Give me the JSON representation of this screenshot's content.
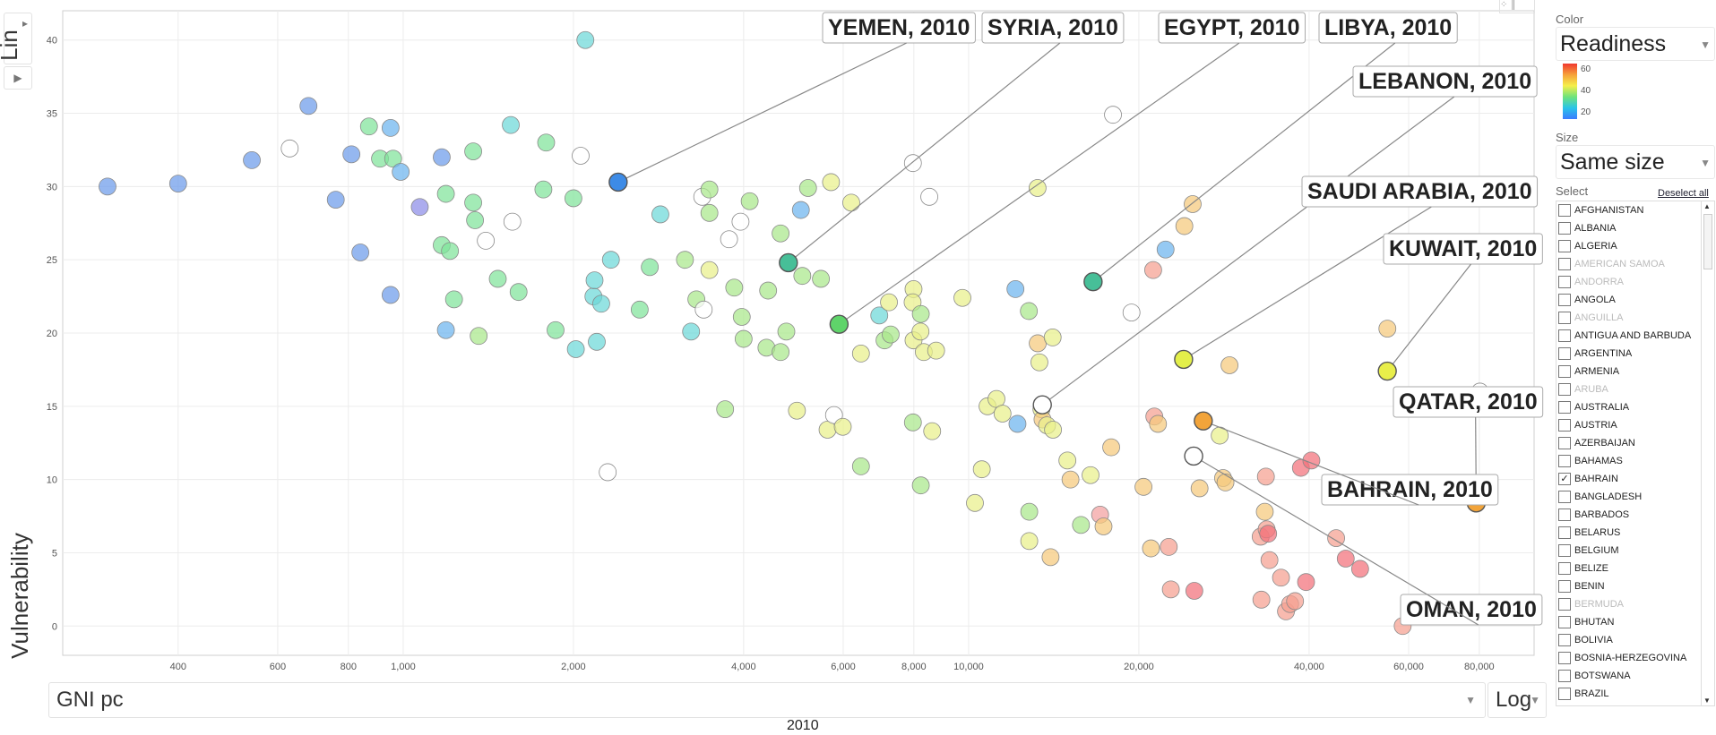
{
  "y_axis": {
    "scale_label": "Lin",
    "title": "Vulnerability",
    "play_icon": "play-icon"
  },
  "x_axis": {
    "title": "GNI pc",
    "scale_label": "Log"
  },
  "time_label": "2010",
  "panel": {
    "color_label": "Color",
    "color_value": "Readiness",
    "legend_ticks": [
      "60",
      "40",
      "20"
    ],
    "size_label": "Size",
    "size_value": "Same size",
    "select_label": "Select",
    "deselect_all": "Deselect all",
    "countries": [
      {
        "name": "AFGHANISTAN",
        "checked": false,
        "dim": false
      },
      {
        "name": "ALBANIA",
        "checked": false,
        "dim": false
      },
      {
        "name": "ALGERIA",
        "checked": false,
        "dim": false
      },
      {
        "name": "AMERICAN SAMOA",
        "checked": false,
        "dim": true
      },
      {
        "name": "ANDORRA",
        "checked": false,
        "dim": true
      },
      {
        "name": "ANGOLA",
        "checked": false,
        "dim": false
      },
      {
        "name": "ANGUILLA",
        "checked": false,
        "dim": true
      },
      {
        "name": "ANTIGUA AND BARBUDA",
        "checked": false,
        "dim": false
      },
      {
        "name": "ARGENTINA",
        "checked": false,
        "dim": false
      },
      {
        "name": "ARMENIA",
        "checked": false,
        "dim": false
      },
      {
        "name": "ARUBA",
        "checked": false,
        "dim": true
      },
      {
        "name": "AUSTRALIA",
        "checked": false,
        "dim": false
      },
      {
        "name": "AUSTRIA",
        "checked": false,
        "dim": false
      },
      {
        "name": "AZERBAIJAN",
        "checked": false,
        "dim": false
      },
      {
        "name": "BAHAMAS",
        "checked": false,
        "dim": false
      },
      {
        "name": "BAHRAIN",
        "checked": true,
        "dim": false
      },
      {
        "name": "BANGLADESH",
        "checked": false,
        "dim": false
      },
      {
        "name": "BARBADOS",
        "checked": false,
        "dim": false
      },
      {
        "name": "BELARUS",
        "checked": false,
        "dim": false
      },
      {
        "name": "BELGIUM",
        "checked": false,
        "dim": false
      },
      {
        "name": "BELIZE",
        "checked": false,
        "dim": false
      },
      {
        "name": "BENIN",
        "checked": false,
        "dim": false
      },
      {
        "name": "BERMUDA",
        "checked": false,
        "dim": true
      },
      {
        "name": "BHUTAN",
        "checked": false,
        "dim": false
      },
      {
        "name": "BOLIVIA",
        "checked": false,
        "dim": false
      },
      {
        "name": "BOSNIA-HERZEGOVINA",
        "checked": false,
        "dim": false
      },
      {
        "name": "BOTSWANA",
        "checked": false,
        "dim": false
      },
      {
        "name": "BRAZIL",
        "checked": false,
        "dim": false
      }
    ]
  },
  "chart_data": {
    "type": "scatter",
    "xlabel": "GNI pc",
    "ylabel": "Vulnerability",
    "x_scale": "log",
    "xlim": [
      250,
      100000
    ],
    "ylim": [
      -2,
      42
    ],
    "x_ticks": [
      {
        "v": 400,
        "l": "400"
      },
      {
        "v": 600,
        "l": "600"
      },
      {
        "v": 800,
        "l": "800"
      },
      {
        "v": 1000,
        "l": "1,000"
      },
      {
        "v": 2000,
        "l": "2,000"
      },
      {
        "v": 4000,
        "l": "4,000"
      },
      {
        "v": 6000,
        "l": "6,000"
      },
      {
        "v": 8000,
        "l": "8,000"
      },
      {
        "v": 10000,
        "l": "10,000"
      },
      {
        "v": 20000,
        "l": "20,000"
      },
      {
        "v": 40000,
        "l": "40,000"
      },
      {
        "v": 60000,
        "l": "60,000"
      },
      {
        "v": 80000,
        "l": "80,000"
      }
    ],
    "y_ticks": [
      0,
      5,
      10,
      15,
      20,
      25,
      30,
      35,
      40
    ],
    "grid": true,
    "color_legend": {
      "label": "Readiness",
      "min": 20,
      "max": 60
    },
    "highlighted": [
      {
        "label": "YEMEN, 2010",
        "x": 2400,
        "y": 30.3,
        "color": "#3d8be6"
      },
      {
        "label": "SYRIA, 2010",
        "x": 4800,
        "y": 24.8,
        "color": "#47bf98"
      },
      {
        "label": "EGYPT, 2010",
        "x": 5900,
        "y": 20.6,
        "color": "#5fd46a"
      },
      {
        "label": "LIBYA, 2010",
        "x": 16600,
        "y": 23.5,
        "color": "#47bf98"
      },
      {
        "label": "LEBANON, 2010",
        "x": 13500,
        "y": 15.1,
        "color": "#ffffff"
      },
      {
        "label": "SAUDI ARABIA, 2010",
        "x": 24000,
        "y": 18.2,
        "color": "#e3ef4a"
      },
      {
        "label": "KUWAIT, 2010",
        "x": 55000,
        "y": 17.4,
        "color": "#e8ee4a"
      },
      {
        "label": "QATAR, 2010",
        "x": 79000,
        "y": 8.4,
        "color": "#f2a43a"
      },
      {
        "label": "BAHRAIN, 2010",
        "x": 26000,
        "y": 14.0,
        "color": "#f2a43a"
      },
      {
        "label": "OMAN, 2010",
        "x": 25000,
        "y": 11.6,
        "color": "#ffffff"
      }
    ],
    "points": [
      [
        300,
        30,
        "#6c9bea"
      ],
      [
        400,
        30.2,
        "#6c9bea"
      ],
      [
        540,
        31.8,
        "#6c9bea"
      ],
      [
        630,
        32.6,
        "#ffffff"
      ],
      [
        680,
        35.5,
        "#6c9bea"
      ],
      [
        760,
        29.1,
        "#6c9bea"
      ],
      [
        810,
        32.2,
        "#6c9bea"
      ],
      [
        840,
        25.5,
        "#6c9bea"
      ],
      [
        870,
        34.1,
        "#7fe39a"
      ],
      [
        910,
        31.9,
        "#7fe39a"
      ],
      [
        950,
        34.0,
        "#6cb4ee"
      ],
      [
        950,
        22.6,
        "#6c9bea"
      ],
      [
        960,
        31.9,
        "#7fe39a"
      ],
      [
        990,
        31.0,
        "#6cb4ee"
      ],
      [
        1070,
        28.6,
        "#8c8ce8"
      ],
      [
        1170,
        32.0,
        "#6c9bea"
      ],
      [
        1170,
        26.0,
        "#7fe39a"
      ],
      [
        1190,
        29.5,
        "#7fe39a"
      ],
      [
        1210,
        25.6,
        "#7fe39a"
      ],
      [
        1190,
        20.2,
        "#6cb4ee"
      ],
      [
        1230,
        22.3,
        "#7fe39a"
      ],
      [
        1330,
        32.4,
        "#7fe39a"
      ],
      [
        1330,
        28.9,
        "#7fe39a"
      ],
      [
        1340,
        27.7,
        "#7fe39a"
      ],
      [
        1360,
        19.8,
        "#a9e88a"
      ],
      [
        1400,
        26.3,
        "#ffffff"
      ],
      [
        1470,
        23.7,
        "#7fe39a"
      ],
      [
        1550,
        34.2,
        "#6cd8d8"
      ],
      [
        1560,
        27.6,
        "#ffffff"
      ],
      [
        1600,
        22.8,
        "#7fe39a"
      ],
      [
        1790,
        33.0,
        "#7fe39a"
      ],
      [
        1770,
        29.8,
        "#7fe39a"
      ],
      [
        1860,
        20.2,
        "#7fe39a"
      ],
      [
        2000,
        29.2,
        "#7fe39a"
      ],
      [
        2020,
        18.9,
        "#6cd8d8"
      ],
      [
        2060,
        32.1,
        "#ffffff"
      ],
      [
        2100,
        40.0,
        "#6cd8d8"
      ],
      [
        2170,
        22.5,
        "#6cd8d8"
      ],
      [
        2180,
        23.6,
        "#6cd8d8"
      ],
      [
        2240,
        22.0,
        "#6cd8d8"
      ],
      [
        2200,
        19.4,
        "#6cd8d8"
      ],
      [
        2300,
        10.5,
        "#ffffff"
      ],
      [
        2330,
        25.0,
        "#6cd8d8"
      ],
      [
        2620,
        21.6,
        "#7fe39a"
      ],
      [
        2730,
        24.5,
        "#7fe39a"
      ],
      [
        2850,
        28.1,
        "#6cd8d8"
      ],
      [
        3150,
        25.0,
        "#a9e88a"
      ],
      [
        3230,
        20.1,
        "#6cd8d8"
      ],
      [
        3300,
        22.3,
        "#a9e88a"
      ],
      [
        3380,
        29.3,
        "#ffffff"
      ],
      [
        3400,
        21.6,
        "#ffffff"
      ],
      [
        3480,
        28.2,
        "#a9e88a"
      ],
      [
        3480,
        24.3,
        "#e9f08a"
      ],
      [
        3480,
        29.8,
        "#a9e88a"
      ],
      [
        3710,
        14.8,
        "#a9e88a"
      ],
      [
        3770,
        26.4,
        "#ffffff"
      ],
      [
        3850,
        23.1,
        "#a9e88a"
      ],
      [
        3950,
        27.6,
        "#ffffff"
      ],
      [
        3970,
        21.1,
        "#a9e88a"
      ],
      [
        4000,
        19.6,
        "#a9e88a"
      ],
      [
        4100,
        29.0,
        "#a9e88a"
      ],
      [
        4390,
        19.0,
        "#a9e88a"
      ],
      [
        4420,
        22.9,
        "#a9e88a"
      ],
      [
        4650,
        18.7,
        "#a9e88a"
      ],
      [
        4650,
        26.8,
        "#a9e88a"
      ],
      [
        4760,
        20.1,
        "#a9e88a"
      ],
      [
        4970,
        14.7,
        "#e9f08a"
      ],
      [
        5080,
        23.9,
        "#a9e88a"
      ],
      [
        5050,
        28.4,
        "#6cb4ee"
      ],
      [
        5200,
        29.9,
        "#a9e88a"
      ],
      [
        5480,
        23.7,
        "#a9e88a"
      ],
      [
        5630,
        13.4,
        "#e9f08a"
      ],
      [
        5710,
        30.3,
        "#e9f08a"
      ],
      [
        5780,
        14.4,
        "#ffffff"
      ],
      [
        5990,
        13.6,
        "#e9f08a"
      ],
      [
        6200,
        28.9,
        "#e9f08a"
      ],
      [
        6450,
        10.9,
        "#a9e88a"
      ],
      [
        6450,
        18.6,
        "#e9f08a"
      ],
      [
        6950,
        21.2,
        "#6cd8d8"
      ],
      [
        7100,
        19.5,
        "#a9e88a"
      ],
      [
        7230,
        22.1,
        "#e9f08a"
      ],
      [
        7280,
        19.9,
        "#a9e88a"
      ],
      [
        7970,
        13.9,
        "#a9e88a"
      ],
      [
        7970,
        31.6,
        "#ffffff"
      ],
      [
        7990,
        23.0,
        "#e9f08a"
      ],
      [
        7960,
        22.1,
        "#e9f08a"
      ],
      [
        7990,
        19.5,
        "#e9f08a"
      ],
      [
        8230,
        9.6,
        "#a9e88a"
      ],
      [
        8230,
        21.3,
        "#a9e88a"
      ],
      [
        8220,
        20.1,
        "#e9f08a"
      ],
      [
        8330,
        18.7,
        "#e9f08a"
      ],
      [
        8520,
        29.3,
        "#ffffff"
      ],
      [
        8620,
        13.3,
        "#e9f08a"
      ],
      [
        8760,
        18.8,
        "#e9f08a"
      ],
      [
        9750,
        22.4,
        "#e9f08a"
      ],
      [
        10260,
        8.4,
        "#e9f08a"
      ],
      [
        10550,
        10.7,
        "#e9f08a"
      ],
      [
        10800,
        15.0,
        "#e9f08a"
      ],
      [
        11200,
        15.5,
        "#e9f08a"
      ],
      [
        11480,
        14.5,
        "#e9f08a"
      ],
      [
        12200,
        13.8,
        "#6cb4ee"
      ],
      [
        12100,
        23.0,
        "#6cb4ee"
      ],
      [
        12780,
        21.5,
        "#a9e88a"
      ],
      [
        12800,
        7.8,
        "#a9e88a"
      ],
      [
        12800,
        5.8,
        "#e9f08a"
      ],
      [
        13240,
        29.9,
        "#e9f08a"
      ],
      [
        13250,
        19.3,
        "#f5c97c"
      ],
      [
        13340,
        18.0,
        "#e9f08a"
      ],
      [
        13450,
        14.8,
        "#e9f08a"
      ],
      [
        13510,
        14.1,
        "#f5c97c"
      ],
      [
        13760,
        13.7,
        "#e9f08a"
      ],
      [
        13960,
        4.7,
        "#f5c97c"
      ],
      [
        14080,
        19.7,
        "#e9f08a"
      ],
      [
        14100,
        13.4,
        "#e9f08a"
      ],
      [
        14950,
        11.3,
        "#e9f08a"
      ],
      [
        15140,
        10.0,
        "#f5c97c"
      ],
      [
        15800,
        6.9,
        "#a9e88a"
      ],
      [
        16430,
        10.3,
        "#e9f08a"
      ],
      [
        17080,
        7.6,
        "#f2a0a0"
      ],
      [
        17320,
        6.8,
        "#f5c97c"
      ],
      [
        17870,
        12.2,
        "#f5c97c"
      ],
      [
        18000,
        34.9,
        "#ffffff"
      ],
      [
        19410,
        21.4,
        "#ffffff"
      ],
      [
        20380,
        9.5,
        "#f5c97c"
      ],
      [
        21010,
        5.3,
        "#f5c97c"
      ],
      [
        21200,
        24.3,
        "#f5a090"
      ],
      [
        21300,
        14.3,
        "#f5a090"
      ],
      [
        21620,
        13.8,
        "#f5c97c"
      ],
      [
        22300,
        25.7,
        "#6cb4ee"
      ],
      [
        22590,
        5.4,
        "#f5a090"
      ],
      [
        22780,
        2.5,
        "#f5a090"
      ],
      [
        24070,
        27.3,
        "#f5c97c"
      ],
      [
        24900,
        28.8,
        "#f5c97c"
      ],
      [
        25070,
        2.4,
        "#f2707a"
      ],
      [
        25610,
        9.4,
        "#f5c97c"
      ],
      [
        27800,
        13.0,
        "#e9f08a"
      ],
      [
        28180,
        10.1,
        "#f5c97c"
      ],
      [
        28460,
        9.8,
        "#f5c97c"
      ],
      [
        28930,
        17.8,
        "#f5c97c"
      ],
      [
        32840,
        6.1,
        "#f5a090"
      ],
      [
        32940,
        1.8,
        "#f5a090"
      ],
      [
        33400,
        7.8,
        "#f5c97c"
      ],
      [
        33550,
        10.2,
        "#f5a090"
      ],
      [
        33650,
        6.6,
        "#f5a090"
      ],
      [
        33860,
        6.3,
        "#f2707a"
      ],
      [
        34040,
        4.5,
        "#f5a090"
      ],
      [
        35680,
        3.3,
        "#f5a090"
      ],
      [
        36410,
        1.0,
        "#f5a090"
      ],
      [
        37030,
        1.5,
        "#f5a090"
      ],
      [
        37780,
        1.7,
        "#f5a090"
      ],
      [
        38690,
        10.8,
        "#f2707a"
      ],
      [
        39510,
        3.0,
        "#f2707a"
      ],
      [
        40380,
        11.3,
        "#f2707a"
      ],
      [
        44660,
        6.0,
        "#f5a090"
      ],
      [
        46440,
        4.6,
        "#f2707a"
      ],
      [
        49240,
        3.9,
        "#f2707a"
      ],
      [
        55020,
        20.3,
        "#f5c97c"
      ],
      [
        58560,
        0.0,
        "#f5a090"
      ],
      [
        80200,
        16.0,
        "#ffffff"
      ]
    ]
  }
}
